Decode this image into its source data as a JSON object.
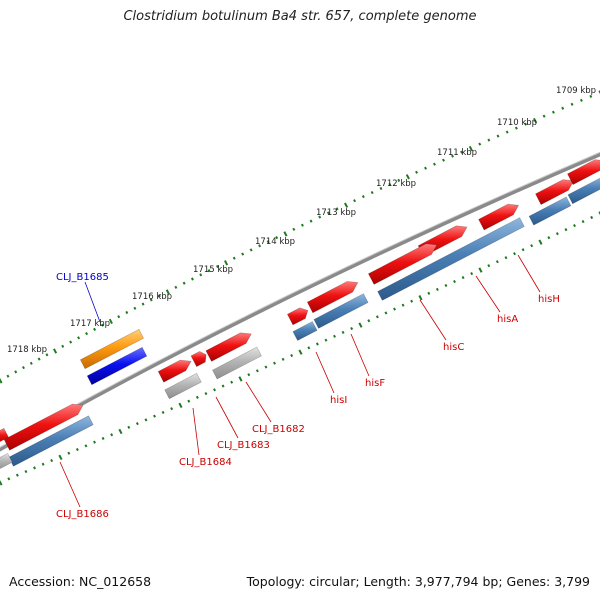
{
  "title": "Clostridium botulinum Ba4 str. 657, complete genome",
  "footer": {
    "accession": "Accession: NC_012658",
    "topology": "Topology: circular; Length: 3,977,794 bp; Genes: 3,799"
  },
  "colors": {
    "backbone": "#8a8a8a",
    "tick": "#1f7a1f",
    "gene_red": "#ee1111",
    "gene_blue": "#4a7fb5",
    "gene_gray": "#b4b4b4",
    "gene_orange": "#ff9a10",
    "gene_darkblue": "#0a10f0",
    "label_red": "#cc0000",
    "label_blue": "#0000cc"
  },
  "scale_labels": [
    "1709 kbp",
    "1710 kbp",
    "1711 kbp",
    "1712 kbp",
    "1713 kbp",
    "1714 kbp",
    "1715 kbp",
    "1716 kbp",
    "1717 kbp",
    "1718 kbp"
  ],
  "gene_labels": [
    {
      "text": "CLJ_B1685",
      "color": "blue"
    },
    {
      "text": "hisH",
      "color": "red"
    },
    {
      "text": "hisA",
      "color": "red"
    },
    {
      "text": "hisC",
      "color": "red"
    },
    {
      "text": "hisF",
      "color": "red"
    },
    {
      "text": "hisI",
      "color": "red"
    },
    {
      "text": "CLJ_B1682",
      "color": "red"
    },
    {
      "text": "CLJ_B1683",
      "color": "red"
    },
    {
      "text": "CLJ_B1684",
      "color": "red"
    },
    {
      "text": "CLJ_B1686",
      "color": "red"
    }
  ]
}
